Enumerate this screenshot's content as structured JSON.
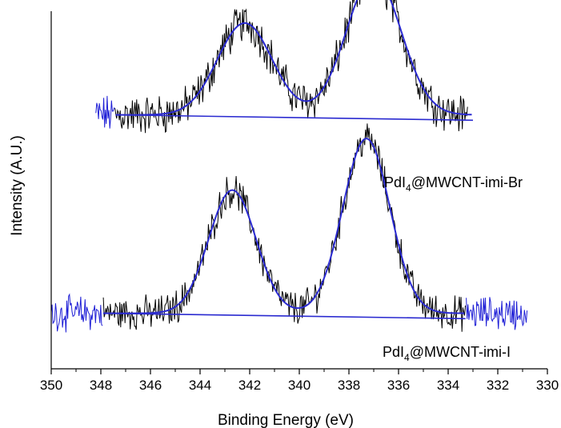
{
  "chart_data": {
    "type": "line",
    "title": "",
    "xlabel": "Binding Energy (eV)",
    "ylabel": "Intensity (A.U.)",
    "xlim": [
      350,
      330
    ],
    "x_reversed": true,
    "y_ticks_shown": false,
    "x_ticks": [
      350,
      348,
      346,
      344,
      342,
      340,
      338,
      336,
      334,
      332,
      330
    ],
    "x_tick_labels": [
      "350",
      "348",
      "346",
      "344",
      "342",
      "340",
      "338",
      "336",
      "334",
      "332",
      "330"
    ],
    "colors": {
      "raw": "#000000",
      "baseline_noise": "#1f1fd6",
      "fit": "#2a2ad0"
    },
    "series": [
      {
        "name": "PdI4@MWCNT-imi-Br",
        "label_parts": [
          "PdI",
          "4",
          "@MWCNT-imi-Br"
        ],
        "x_range": [
          348.2,
          333.2
        ],
        "baseline": 1.9,
        "peaks": [
          {
            "center": 342.2,
            "height": 2.05,
            "width": 1.1
          },
          {
            "center": 337.0,
            "height": 3.1,
            "width": 1.1
          }
        ],
        "noise": 0.35
      },
      {
        "name": "PdI4@MWCNT-imi-I",
        "label_parts": [
          "PdI",
          "4",
          "@MWCNT-imi-I"
        ],
        "x_range": [
          350.0,
          330.8
        ],
        "baseline": 0.15,
        "peaks": [
          {
            "center": 342.7,
            "height": 2.75,
            "width": 0.95
          },
          {
            "center": 337.3,
            "height": 3.9,
            "width": 0.95
          }
        ],
        "noise": 0.3
      }
    ]
  }
}
